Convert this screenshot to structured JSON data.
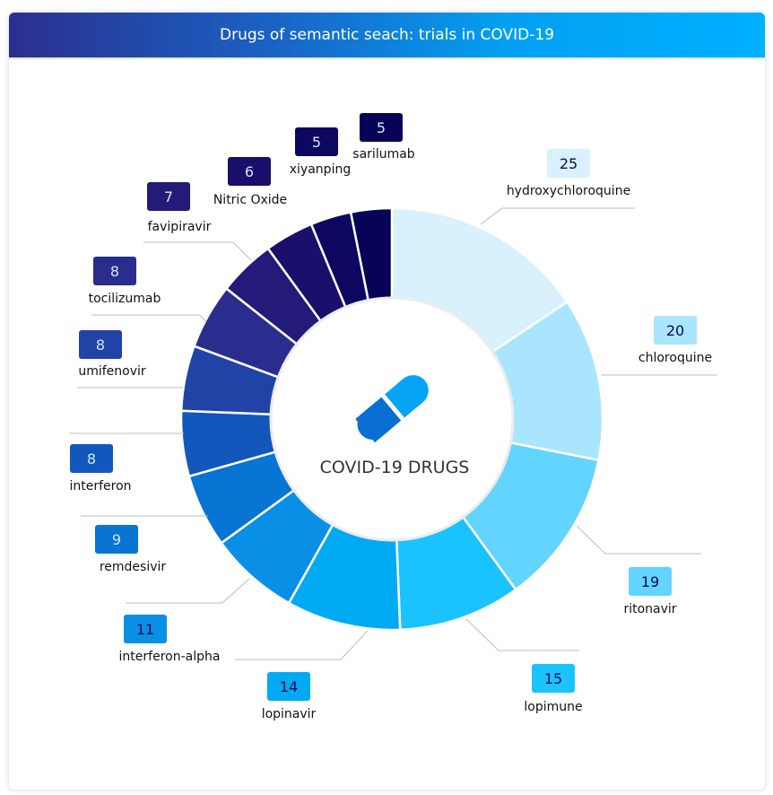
{
  "header": {
    "title": "Drugs of semantic seach: trials in COVID-19"
  },
  "center": {
    "label": "COVID-19 DRUGS",
    "icon": "pill-icon"
  },
  "chart_data": {
    "type": "pie",
    "variant": "donut",
    "title": "Drugs of semantic seach: trials in COVID-19",
    "center_label": "COVID-19 DRUGS",
    "categories": [
      "hydroxychloroquine",
      "chloroquine",
      "ritonavir",
      "lopimune",
      "lopinavir",
      "interferon-alpha",
      "remdesivir",
      "interferon",
      "umifenovir",
      "tocilizumab",
      "favipiravir",
      "Nitric Oxide",
      "xiyanping",
      "sarilumab"
    ],
    "values": [
      25,
      20,
      19,
      15,
      14,
      11,
      9,
      8,
      8,
      8,
      7,
      6,
      5,
      5
    ],
    "colors": [
      "#d9f0fd",
      "#a9e5fe",
      "#62d4fe",
      "#1ac3fd",
      "#00aaf3",
      "#0a8fe6",
      "#0874d3",
      "#1357bd",
      "#2243a6",
      "#2a2d8d",
      "#241a79",
      "#1a0f6a",
      "#0c0860",
      "#070457"
    ]
  }
}
